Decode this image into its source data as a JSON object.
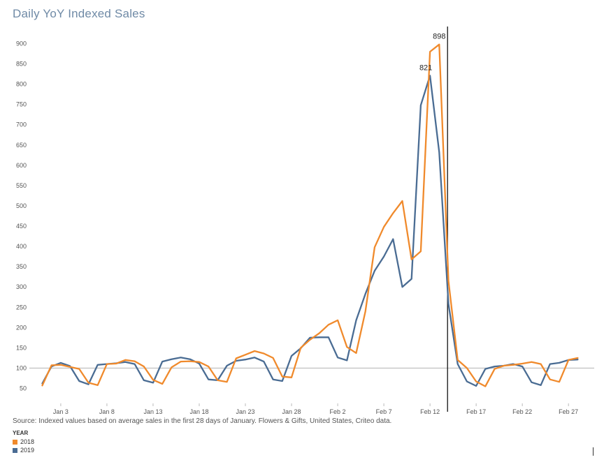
{
  "chart_data": {
    "type": "line",
    "title": "Daily YoY Indexed Sales",
    "source": "Source: Indexed values based on average sales in the first 28 days of January. Flowers & Gifts, United States, Criteo data.",
    "xlabel": "",
    "ylabel": "",
    "ylim": [
      20,
      920
    ],
    "yticks": [
      50,
      100,
      150,
      200,
      250,
      300,
      350,
      400,
      450,
      500,
      550,
      600,
      650,
      700,
      750,
      800,
      850,
      900
    ],
    "xticks": [
      {
        "day": 3,
        "label": "Jan 3"
      },
      {
        "day": 8,
        "label": "Jan 8"
      },
      {
        "day": 13,
        "label": "Jan 13"
      },
      {
        "day": 18,
        "label": "Jan 18"
      },
      {
        "day": 23,
        "label": "Jan 23"
      },
      {
        "day": 28,
        "label": "Jan 28"
      },
      {
        "day": 33,
        "label": "Feb 2"
      },
      {
        "day": 38,
        "label": "Feb 7"
      },
      {
        "day": 43,
        "label": "Feb 12"
      },
      {
        "day": 48,
        "label": "Feb 17"
      },
      {
        "day": 53,
        "label": "Feb 22"
      },
      {
        "day": 58,
        "label": "Feb 27"
      }
    ],
    "reference_line": 100,
    "marker_day": 44.9,
    "legend": {
      "title": "YEAR",
      "placement": "bottom-left"
    },
    "series": [
      {
        "name": "2018",
        "color": "#f08a2c",
        "x": [
          1,
          2,
          3,
          4,
          5,
          6,
          7,
          8,
          9,
          10,
          11,
          12,
          13,
          14,
          15,
          16,
          17,
          18,
          19,
          20,
          21,
          22,
          23,
          24,
          25,
          26,
          27,
          28,
          29,
          30,
          31,
          32,
          33,
          34,
          35,
          36,
          37,
          38,
          39,
          40,
          41,
          42,
          43,
          44,
          45,
          46,
          47,
          48,
          49,
          50,
          51,
          52,
          53,
          54,
          55,
          56,
          57,
          58,
          59
        ],
        "y": [
          57,
          107,
          108,
          103,
          98,
          64,
          58,
          110,
          111,
          120,
          117,
          104,
          71,
          61,
          102,
          116,
          117,
          115,
          104,
          70,
          66,
          124,
          133,
          142,
          136,
          125,
          79,
          77,
          150,
          170,
          186,
          207,
          218,
          152,
          137,
          240,
          398,
          448,
          482,
          512,
          368,
          388,
          880,
          898,
          315,
          120,
          100,
          67,
          55,
          98,
          106,
          108,
          111,
          115,
          110,
          72,
          66,
          120,
          125
        ],
        "labels": [
          {
            "day": 44,
            "text": "898"
          }
        ]
      },
      {
        "name": "2019",
        "color": "#4a6c93",
        "x": [
          1,
          2,
          3,
          4,
          5,
          6,
          7,
          8,
          9,
          10,
          11,
          12,
          13,
          14,
          15,
          16,
          17,
          18,
          19,
          20,
          21,
          22,
          23,
          24,
          25,
          26,
          27,
          28,
          29,
          30,
          31,
          32,
          33,
          34,
          35,
          36,
          37,
          38,
          39,
          40,
          41,
          42,
          43,
          44,
          45,
          46,
          47,
          48,
          49,
          50,
          51,
          52,
          53,
          54,
          55,
          56,
          57,
          58,
          59
        ],
        "y": [
          62,
          104,
          113,
          105,
          68,
          60,
          108,
          110,
          112,
          115,
          110,
          70,
          64,
          116,
          122,
          126,
          122,
          111,
          72,
          70,
          106,
          118,
          121,
          126,
          116,
          72,
          68,
          130,
          149,
          175,
          176,
          176,
          126,
          119,
          218,
          283,
          340,
          375,
          418,
          300,
          320,
          748,
          821,
          632,
          258,
          110,
          67,
          56,
          98,
          104,
          106,
          110,
          104,
          65,
          58,
          110,
          113,
          120,
          121
        ],
        "labels": [
          {
            "day": 43,
            "text": "821"
          }
        ]
      }
    ]
  }
}
